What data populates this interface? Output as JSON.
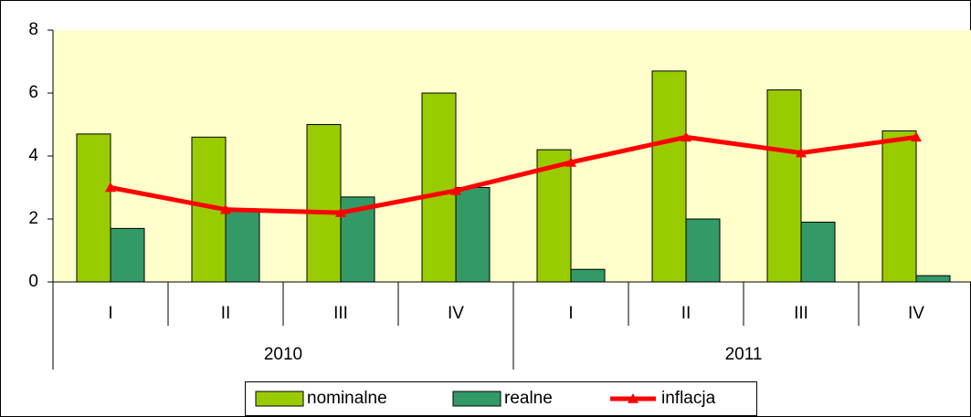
{
  "chart_data": {
    "type": "bar-line",
    "categories": [
      "I",
      "II",
      "III",
      "IV",
      "I",
      "II",
      "III",
      "IV"
    ],
    "category_groups": [
      "2010",
      "2011"
    ],
    "series": [
      {
        "name": "nominalne",
        "type": "bar",
        "color": "#99cc00",
        "values": [
          4.7,
          4.6,
          5.0,
          6.0,
          4.2,
          6.7,
          6.1,
          4.8
        ]
      },
      {
        "name": "realne",
        "type": "bar",
        "color": "#339966",
        "values": [
          1.7,
          2.3,
          2.7,
          3.0,
          0.4,
          2.0,
          1.9,
          0.2
        ]
      },
      {
        "name": "inflacja",
        "type": "line",
        "color": "#ff0000",
        "values": [
          3.0,
          2.3,
          2.2,
          2.9,
          3.8,
          4.6,
          4.1,
          4.6
        ]
      }
    ],
    "ylim": [
      0,
      8
    ],
    "yticks": [
      0,
      2,
      4,
      6,
      8
    ],
    "legend": "bottom"
  }
}
